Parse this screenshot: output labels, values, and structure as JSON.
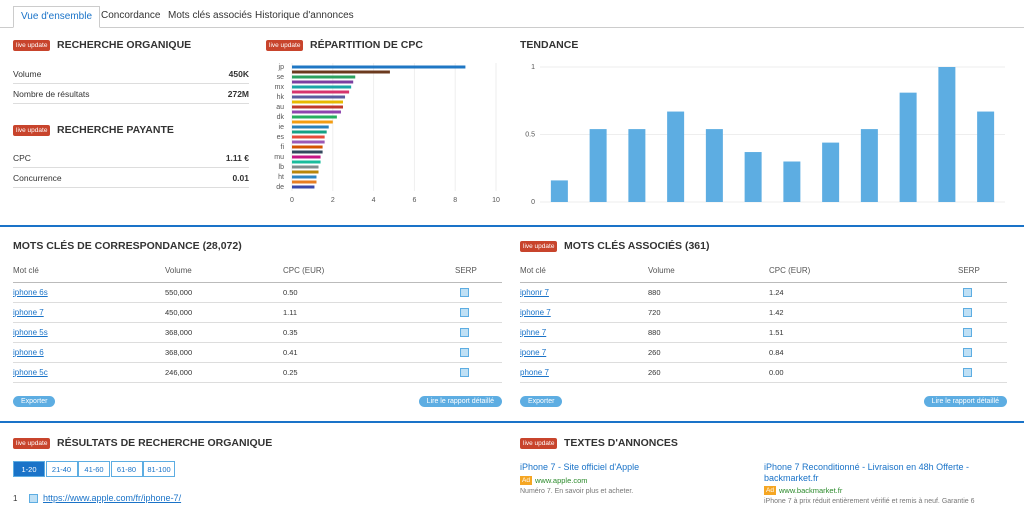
{
  "tabs": [
    "Vue d'ensemble",
    "Concordance",
    "Mots clés associés",
    "Historique d'annonces"
  ],
  "badge": "live update",
  "organic": {
    "title": "RECHERCHE ORGANIQUE",
    "rows": [
      [
        "Volume",
        "450K"
      ],
      [
        "Nombre de résultats",
        "272M"
      ]
    ]
  },
  "paid": {
    "title": "RECHERCHE PAYANTE",
    "rows": [
      [
        "CPC",
        "1.11 €"
      ],
      [
        "Concurrence",
        "0.01"
      ]
    ]
  },
  "chart_data": [
    {
      "type": "hbar",
      "title": "RÉPARTITION DE CPC",
      "categories": [
        "jp",
        null,
        "se",
        null,
        "mx",
        null,
        "hk",
        null,
        "au",
        null,
        "dk",
        null,
        "ie",
        null,
        "es",
        null,
        "fi",
        null,
        "mu",
        null,
        "lb",
        null,
        "ht",
        null,
        "de"
      ],
      "values": [
        8.5,
        4.8,
        3.1,
        3.0,
        2.9,
        2.8,
        2.6,
        2.5,
        2.5,
        2.4,
        2.2,
        2.0,
        1.8,
        1.7,
        1.6,
        1.6,
        1.5,
        1.5,
        1.4,
        1.4,
        1.3,
        1.3,
        1.2,
        1.2,
        1.1
      ],
      "colors": [
        "#1f77c4",
        "#6b3a1e",
        "#2ca25f",
        "#7b3fa0",
        "#1aa6a6",
        "#d6336c",
        "#5b5b9e",
        "#e6b800",
        "#c0392b",
        "#8e44ad",
        "#27ae60",
        "#f39c12",
        "#2980b9",
        "#16a085",
        "#e74c3c",
        "#9b59b6",
        "#d35400",
        "#34495e",
        "#c71585",
        "#1abc9c",
        "#7f8c8d",
        "#b8860b",
        "#2e86c1",
        "#e67e22",
        "#3949ab"
      ],
      "xlim": [
        0,
        10
      ],
      "xticks": [
        0,
        2,
        4,
        6,
        8,
        10
      ],
      "grid": true
    },
    {
      "type": "bar",
      "title": "TENDANCE",
      "values": [
        0.16,
        0.54,
        0.54,
        0.67,
        0.54,
        0.37,
        0.3,
        0.44,
        0.54,
        0.81,
        1,
        0.67
      ],
      "color": "#5dade2",
      "ylim": [
        0,
        1
      ],
      "yticks": [
        0,
        0.5,
        1
      ],
      "grid": true
    }
  ],
  "match": {
    "title": "MOTS CLÉS DE CORRESPONDANCE (28,072)",
    "headers": [
      "Mot clé",
      "Volume",
      "CPC (EUR)",
      "SERP"
    ],
    "rows": [
      [
        "iphone 6s",
        "550,000",
        "0.50"
      ],
      [
        "iphone 7",
        "450,000",
        "1.11"
      ],
      [
        "iphone 5s",
        "368,000",
        "0.35"
      ],
      [
        "iphone 6",
        "368,000",
        "0.41"
      ],
      [
        "iphone 5c",
        "246,000",
        "0.25"
      ]
    ],
    "buttons": [
      "Exporter",
      "Lire le rapport détaillé"
    ]
  },
  "related": {
    "title": "MOTS CLÉS ASSOCIÉS (361)",
    "headers": [
      "Mot clé",
      "Volume",
      "CPC (EUR)",
      "SERP"
    ],
    "rows": [
      [
        "iphonr 7",
        "880",
        "1.24"
      ],
      [
        "iphone 7",
        "720",
        "1.42"
      ],
      [
        "iphne 7",
        "880",
        "1.51"
      ],
      [
        "ipone 7",
        "260",
        "0.84"
      ],
      [
        "phone 7",
        "260",
        "0.00"
      ]
    ],
    "buttons": [
      "Exporter",
      "Lire le rapport détaillé"
    ]
  },
  "organic_results": {
    "title": "RÉSULTATS DE RECHERCHE ORGANIQUE",
    "pages": [
      "1-20",
      "21-40",
      "41-60",
      "61-80",
      "81-100"
    ],
    "results": [
      {
        "rank": 1,
        "url": "https://www.apple.com/fr/iphone-7/"
      }
    ]
  },
  "ads": {
    "title": "TEXTES D'ANNONCES",
    "label": "Ad",
    "items": [
      {
        "title": "iPhone 7 - Site officiel d'Apple",
        "url": "www.apple.com",
        "text": "Numéro 7. En savoir plus et acheter."
      },
      {
        "title": "iPhone 7 Reconditionné - Livraison en 48h Offerte - backmarket.fr",
        "url": "www.backmarket.fr",
        "text": "iPhone 7 à prix réduit entièrement vérifié et remis à neuf. Garantie 6"
      }
    ]
  }
}
